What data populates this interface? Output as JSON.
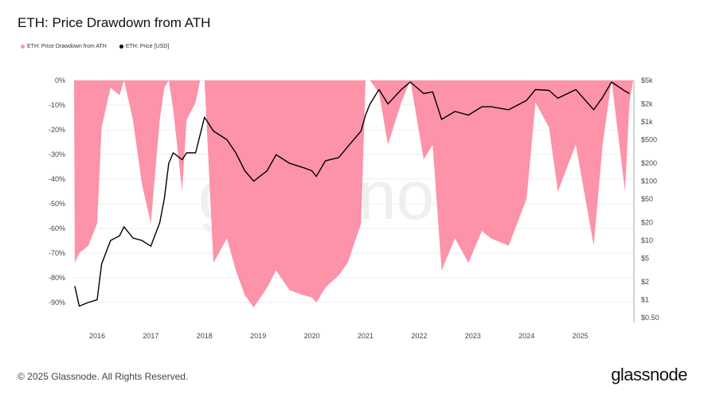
{
  "chart_data": {
    "type": "area",
    "title": "ETH: Price Drawdown from ATH",
    "legend": [
      "ETH: Price Drawdown from ATH",
      "ETH: Price [USD]"
    ],
    "legend_placement": "top-left",
    "colors": {
      "drawdown": "#fc93a9",
      "price": "#000000",
      "grid": "#ececec"
    },
    "x_ticks": [
      "2016",
      "2017",
      "2018",
      "2019",
      "2020",
      "2021",
      "2022",
      "2023",
      "2024",
      "2025"
    ],
    "y_left_ticks": [
      "0%",
      "-10%",
      "-20%",
      "-30%",
      "-40%",
      "-50%",
      "-60%",
      "-70%",
      "-80%",
      "-90%"
    ],
    "y_left_range": [
      -100,
      0
    ],
    "y_right_ticks": [
      {
        "label": "$5k",
        "value": 5000
      },
      {
        "label": "$2k",
        "value": 2000
      },
      {
        "label": "$1k",
        "value": 1000
      },
      {
        "label": "$500",
        "value": 500
      },
      {
        "label": "$200",
        "value": 200
      },
      {
        "label": "$100",
        "value": 100
      },
      {
        "label": "$50",
        "value": 50
      },
      {
        "label": "$20",
        "value": 20
      },
      {
        "label": "$10",
        "value": 10
      },
      {
        "label": "$5",
        "value": 5
      },
      {
        "label": "$2",
        "value": 2
      },
      {
        "label": "$1",
        "value": 1
      },
      {
        "label": "$0.50",
        "value": 0.5
      }
    ],
    "y_right_scale": "log",
    "y_right_range": [
      0.5,
      5000
    ],
    "grid": true,
    "series": [
      {
        "name": "ETH: Price Drawdown from ATH",
        "axis": "left",
        "points": [
          [
            "2015-08",
            -74
          ],
          [
            "2015-09",
            -70
          ],
          [
            "2015-11",
            -67
          ],
          [
            "2016-01",
            -58
          ],
          [
            "2016-02",
            -19
          ],
          [
            "2016-04",
            -3
          ],
          [
            "2016-06",
            -6
          ],
          [
            "2016-07",
            0
          ],
          [
            "2016-09",
            -16
          ],
          [
            "2016-11",
            -42
          ],
          [
            "2017-01",
            -58
          ],
          [
            "2017-03",
            -16
          ],
          [
            "2017-04",
            -3
          ],
          [
            "2017-05",
            0
          ],
          [
            "2017-06",
            -12
          ],
          [
            "2017-08",
            -45
          ],
          [
            "2017-09",
            -16
          ],
          [
            "2017-11",
            -9
          ],
          [
            "2017-12",
            0
          ],
          [
            "2018-01",
            0
          ],
          [
            "2018-03",
            -74
          ],
          [
            "2018-06",
            -64
          ],
          [
            "2018-08",
            -77
          ],
          [
            "2018-10",
            -87
          ],
          [
            "2018-12",
            -92
          ],
          [
            "2019-03",
            -84
          ],
          [
            "2019-05",
            -77
          ],
          [
            "2019-08",
            -85
          ],
          [
            "2019-11",
            -87
          ],
          [
            "2020-01",
            -88
          ],
          [
            "2020-02",
            -90
          ],
          [
            "2020-04",
            -84
          ],
          [
            "2020-07",
            -79
          ],
          [
            "2020-09",
            -74
          ],
          [
            "2020-12",
            -58
          ],
          [
            "2021-01",
            0
          ],
          [
            "2021-02",
            0
          ],
          [
            "2021-04",
            -5
          ],
          [
            "2021-06",
            -26
          ],
          [
            "2021-09",
            -9
          ],
          [
            "2021-11",
            0
          ],
          [
            "2022-02",
            -32
          ],
          [
            "2022-04",
            -26
          ],
          [
            "2022-06",
            -77
          ],
          [
            "2022-09",
            -64
          ],
          [
            "2022-12",
            -74
          ],
          [
            "2023-03",
            -61
          ],
          [
            "2023-05",
            -64
          ],
          [
            "2023-09",
            -67
          ],
          [
            "2024-01",
            -48
          ],
          [
            "2024-03",
            -9
          ],
          [
            "2024-06",
            -19
          ],
          [
            "2024-08",
            -45
          ],
          [
            "2024-12",
            -26
          ],
          [
            "2025-04",
            -67
          ],
          [
            "2025-06",
            -26
          ],
          [
            "2025-08",
            0
          ],
          [
            "2025-11",
            -45
          ],
          [
            "2025-12",
            -9
          ]
        ]
      },
      {
        "name": "ETH: Price [USD]",
        "axis": "right",
        "points": [
          [
            "2015-08",
            1.7
          ],
          [
            "2015-09",
            0.78
          ],
          [
            "2015-11",
            0.9
          ],
          [
            "2016-01",
            1
          ],
          [
            "2016-02",
            4
          ],
          [
            "2016-04",
            10
          ],
          [
            "2016-06",
            12
          ],
          [
            "2016-07",
            17
          ],
          [
            "2016-09",
            11
          ],
          [
            "2016-11",
            10
          ],
          [
            "2017-01",
            8
          ],
          [
            "2017-03",
            20
          ],
          [
            "2017-04",
            50
          ],
          [
            "2017-05",
            200
          ],
          [
            "2017-06",
            300
          ],
          [
            "2017-08",
            230
          ],
          [
            "2017-09",
            300
          ],
          [
            "2017-11",
            300
          ],
          [
            "2017-12",
            600
          ],
          [
            "2018-01",
            1200
          ],
          [
            "2018-03",
            700
          ],
          [
            "2018-06",
            500
          ],
          [
            "2018-08",
            300
          ],
          [
            "2018-10",
            150
          ],
          [
            "2018-12",
            100
          ],
          [
            "2019-03",
            150
          ],
          [
            "2019-05",
            280
          ],
          [
            "2019-08",
            200
          ],
          [
            "2019-11",
            170
          ],
          [
            "2020-01",
            150
          ],
          [
            "2020-02",
            120
          ],
          [
            "2020-04",
            220
          ],
          [
            "2020-07",
            250
          ],
          [
            "2020-09",
            380
          ],
          [
            "2020-12",
            700
          ],
          [
            "2021-01",
            1300
          ],
          [
            "2021-02",
            2000
          ],
          [
            "2021-04",
            3500
          ],
          [
            "2021-06",
            2000
          ],
          [
            "2021-09",
            3500
          ],
          [
            "2021-11",
            4700
          ],
          [
            "2022-02",
            3000
          ],
          [
            "2022-04",
            3200
          ],
          [
            "2022-06",
            1100
          ],
          [
            "2022-09",
            1500
          ],
          [
            "2022-12",
            1300
          ],
          [
            "2023-03",
            1800
          ],
          [
            "2023-05",
            1800
          ],
          [
            "2023-09",
            1600
          ],
          [
            "2024-01",
            2300
          ],
          [
            "2024-03",
            3500
          ],
          [
            "2024-06",
            3400
          ],
          [
            "2024-08",
            2500
          ],
          [
            "2024-12",
            3500
          ],
          [
            "2025-04",
            1600
          ],
          [
            "2025-06",
            2600
          ],
          [
            "2025-08",
            4700
          ],
          [
            "2025-11",
            3300
          ],
          [
            "2025-12",
            3000
          ]
        ]
      }
    ]
  },
  "footer": {
    "copyright": "© 2025 Glassnode. All Rights Reserved.",
    "brand": "glassnode",
    "watermark": "glassnode"
  }
}
